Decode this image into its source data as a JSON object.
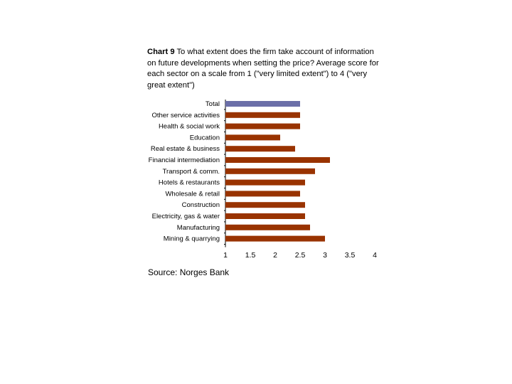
{
  "heading": {
    "label": "Chart 9",
    "text": "To what extent does the firm take account of information on future developments when setting the price? Average score for each sector on a scale from 1 (\"very limited extent\") to 4 (\"very great extent\")"
  },
  "source": "Source: Norges Bank",
  "colors": {
    "total_bar": "#6b6fa8",
    "sector_bar": "#993300",
    "axis": "#000000"
  },
  "chart_data": {
    "type": "bar",
    "orientation": "horizontal",
    "title": "Chart 9 To what extent does the firm take account of information on future developments when setting the price? Average score for each sector on a scale from 1 (\"very limited extent\") to 4 (\"very great extent\")",
    "xlabel": "",
    "ylabel": "",
    "xlim": [
      1,
      4
    ],
    "xticks": [
      "1",
      "1.5",
      "2",
      "2.5",
      "3",
      "3.5",
      "4"
    ],
    "grid": false,
    "legend": "none",
    "categories": [
      "Total",
      "Other service activities",
      "Health & social work",
      "Education",
      "Real estate & business",
      "Financial intermediation",
      "Transport & comm.",
      "Hotels & restaurants",
      "Wholesale & retail",
      "Construction",
      "Electricity, gas & water",
      "Manufacturing",
      "Mining & quarrying"
    ],
    "values": [
      2.5,
      2.5,
      2.5,
      2.1,
      2.4,
      3.1,
      2.8,
      2.6,
      2.5,
      2.6,
      2.6,
      2.7,
      3.0
    ]
  }
}
